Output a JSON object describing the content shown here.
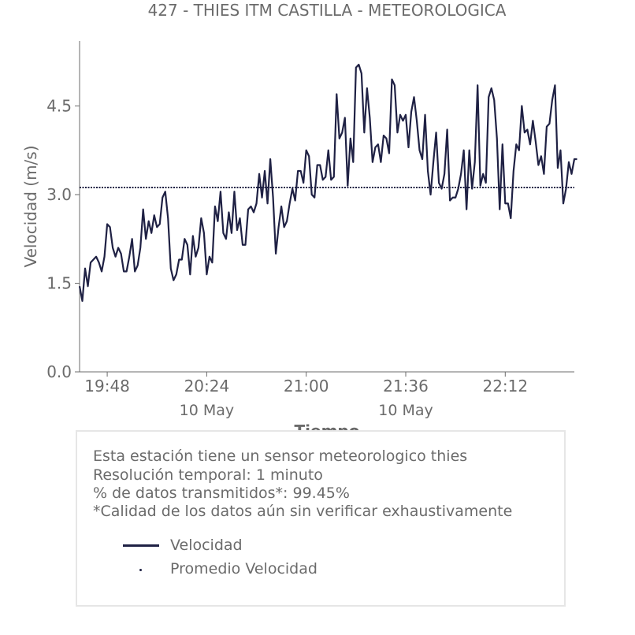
{
  "chart_data": {
    "type": "line",
    "title": "427 - THIES ITM CASTILLA - METEOROLOGICA",
    "xlabel": "Tiempo",
    "ylabel": "Velocidad (m/s)",
    "ylim": [
      0,
      5.6
    ],
    "yticks": [
      "0.0",
      "1.5",
      "3.0",
      "4.5"
    ],
    "xticks": [
      {
        "time": "19:48",
        "date": ""
      },
      {
        "time": "20:24",
        "date": "10 May"
      },
      {
        "time": "21:00",
        "date": ""
      },
      {
        "time": "21:36",
        "date": "10 May"
      },
      {
        "time": "22:12",
        "date": ""
      }
    ],
    "x_start": "19:38",
    "x_end": "22:37",
    "mean": 3.12,
    "grid": false,
    "legend_position": "below",
    "series": [
      {
        "name": "Velocidad",
        "color": "#1f2144",
        "step_minutes": 1,
        "values": [
          1.45,
          1.2,
          1.75,
          1.45,
          1.85,
          1.9,
          1.95,
          1.85,
          1.7,
          1.95,
          2.5,
          2.45,
          2.1,
          1.95,
          2.1,
          2.0,
          1.7,
          1.7,
          1.95,
          2.25,
          1.7,
          1.8,
          2.1,
          2.75,
          2.25,
          2.55,
          2.35,
          2.65,
          2.45,
          2.5,
          2.95,
          3.05,
          2.6,
          1.75,
          1.55,
          1.65,
          1.9,
          1.9,
          2.25,
          2.15,
          1.65,
          2.3,
          1.95,
          2.1,
          2.6,
          2.35,
          1.65,
          1.95,
          1.85,
          2.8,
          2.55,
          3.05,
          2.35,
          2.25,
          2.7,
          2.35,
          3.05,
          2.4,
          2.6,
          2.15,
          2.15,
          2.75,
          2.8,
          2.7,
          2.85,
          3.35,
          2.95,
          3.4,
          2.85,
          3.6,
          2.95,
          2.0,
          2.45,
          2.8,
          2.45,
          2.55,
          2.85,
          3.1,
          2.9,
          3.4,
          3.4,
          3.2,
          3.75,
          3.65,
          3.0,
          2.95,
          3.5,
          3.5,
          3.25,
          3.3,
          3.75,
          3.25,
          3.3,
          4.7,
          3.95,
          4.05,
          4.3,
          3.15,
          3.95,
          3.55,
          5.15,
          5.2,
          5.05,
          4.05,
          4.8,
          4.3,
          3.55,
          3.8,
          3.85,
          3.55,
          4.0,
          3.95,
          3.7,
          4.95,
          4.85,
          4.05,
          4.35,
          4.25,
          4.35,
          3.8,
          4.4,
          4.65,
          4.25,
          3.75,
          3.6,
          4.35,
          3.4,
          3.0,
          3.55,
          4.05,
          3.2,
          3.1,
          3.35,
          4.1,
          2.9,
          2.95,
          2.95,
          3.1,
          3.35,
          3.75,
          2.75,
          3.75,
          3.1,
          3.55,
          4.85,
          3.15,
          3.35,
          3.2,
          4.65,
          4.8,
          4.6,
          3.95,
          2.75,
          3.85,
          2.85,
          2.85,
          2.6,
          3.4,
          3.85,
          3.75,
          4.5,
          4.05,
          4.1,
          3.85,
          4.25,
          3.9,
          3.5,
          3.65,
          3.35,
          4.15,
          4.2,
          4.6,
          4.85,
          3.45,
          3.75,
          2.85,
          3.1,
          3.55,
          3.35,
          3.6,
          3.6
        ]
      },
      {
        "name": "Promedio Velocidad",
        "color": "#1f2144",
        "style": "dotted"
      }
    ]
  },
  "info": {
    "line1": "Esta estación tiene un sensor meteorologico thies",
    "line2": "Resolución temporal: 1 minuto",
    "line3": "% de datos transmitidos*: 99.45%",
    "line4": "*Calidad de los datos aún sin verificar exhaustivamente"
  }
}
